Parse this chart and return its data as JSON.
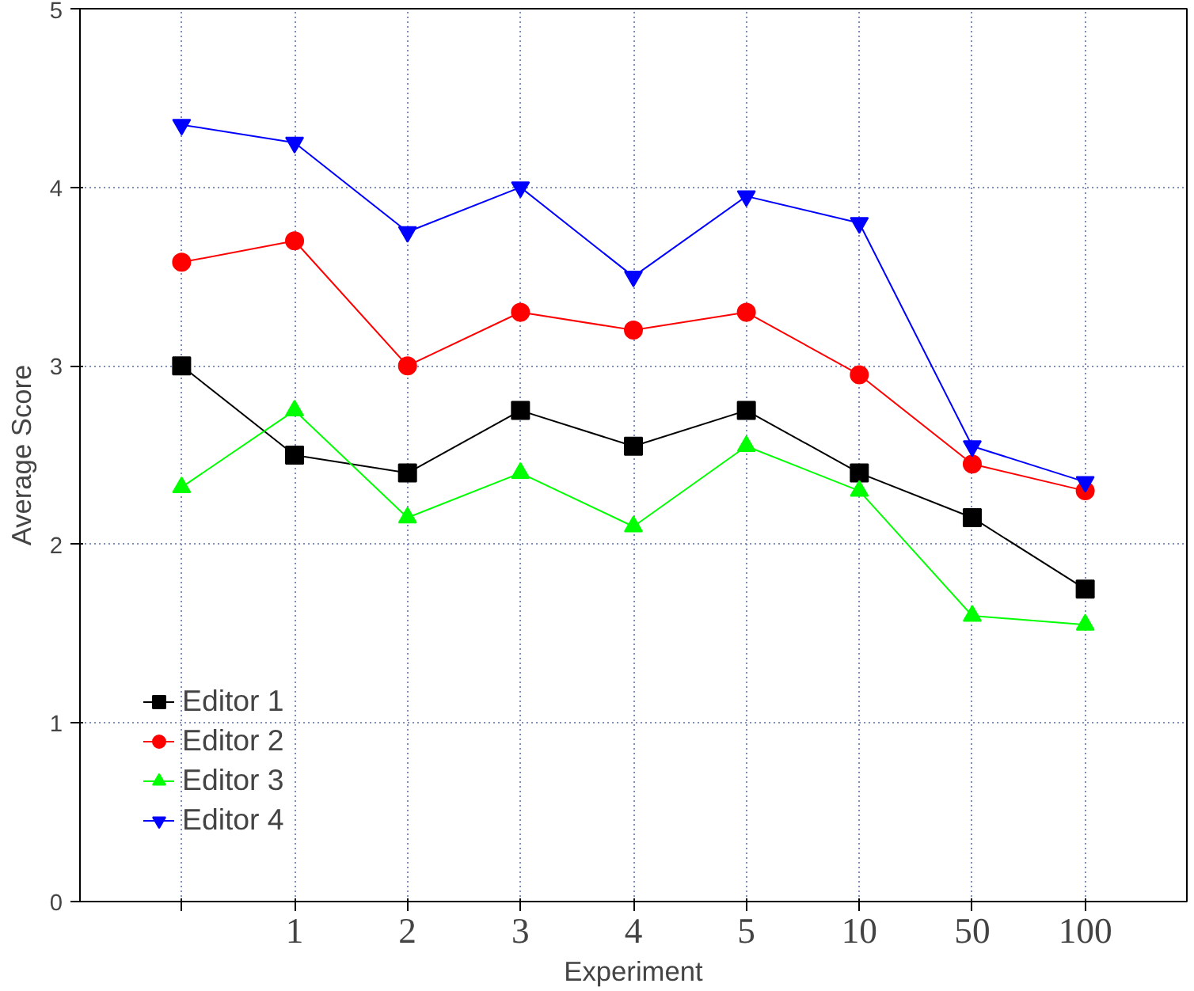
{
  "chart_data": {
    "type": "line",
    "xlabel": "Experiment",
    "ylabel": "Average Score",
    "categories": [
      null,
      "1",
      "2",
      "3",
      "4",
      "5",
      "10",
      "50",
      "100"
    ],
    "ylim": [
      0,
      5
    ],
    "yticks": [
      0,
      1,
      2,
      3,
      4,
      5
    ],
    "grid": true,
    "legend": "bottom left",
    "line_style": "solid",
    "series": [
      {
        "name": "Editor 1",
        "color": "#000000",
        "marker": "square",
        "values": [
          3.0,
          2.5,
          2.4,
          2.75,
          2.55,
          2.75,
          2.4,
          2.15,
          1.75
        ]
      },
      {
        "name": "Editor 2",
        "color": "#ff0000",
        "marker": "circle",
        "values": [
          3.58,
          3.7,
          3.0,
          3.3,
          3.2,
          3.3,
          2.95,
          2.45,
          2.3
        ]
      },
      {
        "name": "Editor 3",
        "color": "#00ff00",
        "marker": "triangle",
        "values": [
          2.32,
          2.75,
          2.15,
          2.4,
          2.1,
          2.55,
          2.3,
          1.6,
          1.55
        ]
      },
      {
        "name": "Editor 4",
        "color": "#0000ff",
        "marker": "triangle_down",
        "values": [
          4.35,
          4.25,
          3.75,
          4.0,
          3.5,
          3.95,
          3.8,
          2.55,
          2.35
        ]
      }
    ]
  }
}
